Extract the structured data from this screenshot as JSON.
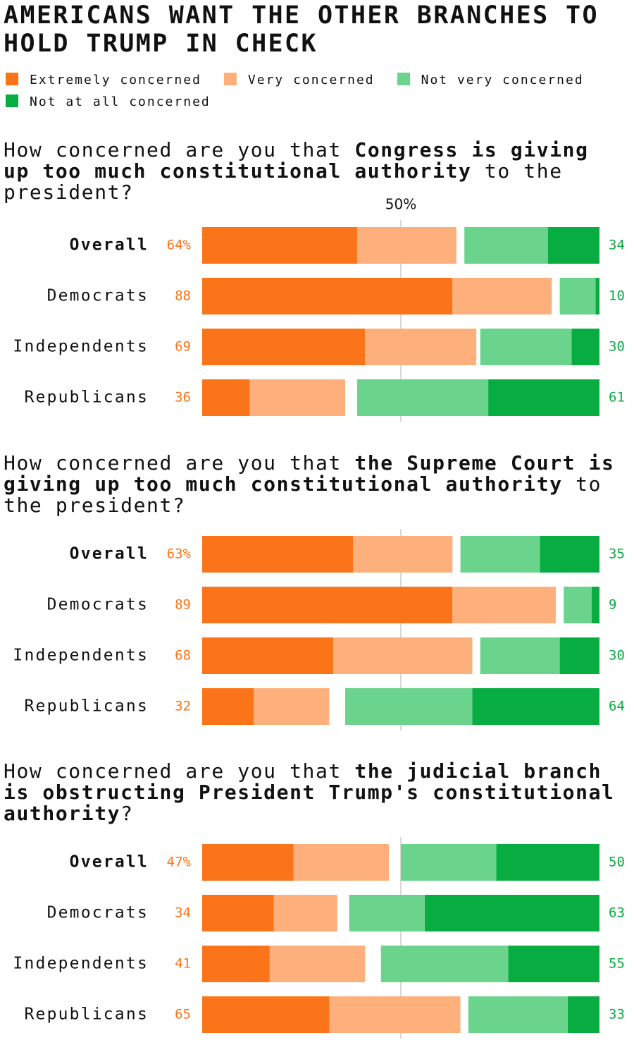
{
  "title": "AMERICANS WANT THE OTHER BRANCHES TO HOLD TRUMP IN CHECK",
  "xlim": [
    0,
    100
  ],
  "xticks": [
    {
      "value": 50,
      "label": "50%"
    }
  ],
  "chart_data": [
    {
      "type": "bar",
      "stacked": true,
      "question": [
        {
          "text": "How concerned are you that ",
          "bold": false
        },
        {
          "text": "Congress is giving up too much constitutional authority",
          "bold": true
        },
        {
          "text": " to the president?",
          "bold": false
        }
      ],
      "categories": [
        "Overall",
        "Democrats",
        "Independents",
        "Republicans"
      ],
      "series": [
        {
          "name": "Extremely concerned",
          "color": "#fc7419",
          "side": "left",
          "values": [
            39,
            63,
            41,
            12
          ]
        },
        {
          "name": "Very concerned",
          "color": "#fdb07c",
          "side": "left",
          "values": [
            25,
            25,
            28,
            24
          ]
        },
        {
          "name": "Not very concerned",
          "color": "#6bd48c",
          "side": "right",
          "values": [
            21,
            9,
            23,
            33
          ]
        },
        {
          "name": "Not at all concerned",
          "color": "#08ad42",
          "side": "right",
          "values": [
            13,
            1,
            7,
            28
          ]
        }
      ],
      "concerned": {
        "color": "#fc7419",
        "values": [
          64,
          88,
          69,
          36
        ],
        "value_labels": [
          "64%",
          "88",
          "69",
          "36"
        ]
      },
      "not_concerned": {
        "color": "#08ad42",
        "values": [
          34,
          10,
          30,
          61
        ]
      }
    },
    {
      "type": "bar",
      "stacked": true,
      "question": [
        {
          "text": "How concerned are you that ",
          "bold": false
        },
        {
          "text": "the Supreme Court is giving up too much constitutional authority",
          "bold": true
        },
        {
          "text": " to the president?",
          "bold": false
        }
      ],
      "categories": [
        "Overall",
        "Democrats",
        "Independents",
        "Republicans"
      ],
      "series": [
        {
          "name": "Extremely concerned",
          "color": "#fc7419",
          "side": "left",
          "values": [
            38,
            63,
            33,
            13
          ]
        },
        {
          "name": "Very concerned",
          "color": "#fdb07c",
          "side": "left",
          "values": [
            25,
            26,
            35,
            19
          ]
        },
        {
          "name": "Not very concerned",
          "color": "#6bd48c",
          "side": "right",
          "values": [
            20,
            7,
            20,
            32
          ]
        },
        {
          "name": "Not at all concerned",
          "color": "#08ad42",
          "side": "right",
          "values": [
            15,
            2,
            10,
            32
          ]
        }
      ],
      "concerned": {
        "color": "#fc7419",
        "values": [
          63,
          89,
          68,
          32
        ],
        "value_labels": [
          "63%",
          "89",
          "68",
          "32"
        ]
      },
      "not_concerned": {
        "color": "#08ad42",
        "values": [
          35,
          9,
          30,
          64
        ]
      }
    },
    {
      "type": "bar",
      "stacked": true,
      "question": [
        {
          "text": "How concerned are you that ",
          "bold": false
        },
        {
          "text": "the judicial branch is obstructing President Trump's constitutional authority",
          "bold": true
        },
        {
          "text": "?",
          "bold": false
        }
      ],
      "categories": [
        "Overall",
        "Democrats",
        "Independents",
        "Republicans"
      ],
      "series": [
        {
          "name": "Extremely concerned",
          "color": "#fc7419",
          "side": "left",
          "values": [
            23,
            18,
            17,
            32
          ]
        },
        {
          "name": "Very concerned",
          "color": "#fdb07c",
          "side": "left",
          "values": [
            24,
            16,
            24,
            33
          ]
        },
        {
          "name": "Not very concerned",
          "color": "#6bd48c",
          "side": "right",
          "values": [
            24,
            19,
            32,
            25
          ]
        },
        {
          "name": "Not at all concerned",
          "color": "#08ad42",
          "side": "right",
          "values": [
            26,
            44,
            23,
            8
          ]
        }
      ],
      "concerned": {
        "color": "#fc7419",
        "values": [
          47,
          34,
          41,
          65
        ],
        "value_labels": [
          "47%",
          "34",
          "41",
          "65"
        ]
      },
      "not_concerned": {
        "color": "#08ad42",
        "values": [
          50,
          63,
          55,
          33
        ]
      }
    }
  ]
}
